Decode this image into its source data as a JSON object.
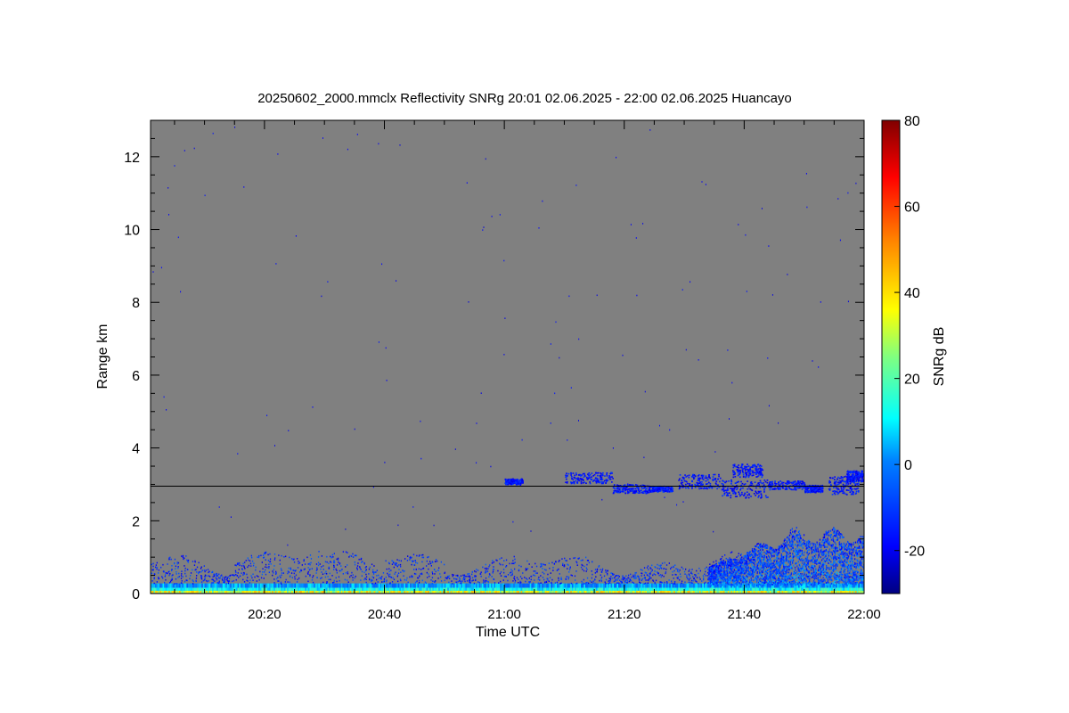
{
  "chart_data": {
    "type": "heatmap",
    "title": "20250602_2000.mmclx Reflectivity SNRg   20:01 02.06.2025 - 22:00 02.06.2025 Huancayo",
    "xlabel": "Time UTC",
    "ylabel": "Range km",
    "x_range_min": [
      1,
      120
    ],
    "x_tick_labels": [
      "20:20",
      "20:40",
      "21:00",
      "21:20",
      "21:40",
      "22:00"
    ],
    "x_tick_values_min": [
      20,
      40,
      60,
      80,
      100,
      120
    ],
    "ylim": [
      0,
      13
    ],
    "y_tick_labels": [
      "0",
      "2",
      "4",
      "6",
      "8",
      "10",
      "12"
    ],
    "y_tick_values": [
      0,
      2,
      4,
      6,
      8,
      10,
      12
    ],
    "reference_line_km": 2.95,
    "background_color": "#808080",
    "colorbar": {
      "label": "SNRg dB",
      "range": [
        -30,
        80
      ],
      "tick_labels": [
        "-20",
        "0",
        "20",
        "40",
        "60",
        "80"
      ],
      "tick_values": [
        -20,
        0,
        20,
        40,
        60,
        80
      ],
      "colormap": [
        "#000080",
        "#0000ff",
        "#0080ff",
        "#00ffff",
        "#80ff80",
        "#ffff00",
        "#ff8000",
        "#ff0000",
        "#800000"
      ]
    },
    "features": [
      {
        "kind": "surface_layer",
        "x_min": [
          1,
          120
        ],
        "range_km": [
          0,
          0.3
        ],
        "snr_db": 15
      },
      {
        "kind": "boundary_layer_noise",
        "x_min": [
          1,
          120
        ],
        "range_km": [
          0.3,
          1.0
        ],
        "snr_db": -15
      },
      {
        "kind": "convective_plume",
        "x_min": [
          95,
          120
        ],
        "range_km": [
          0.2,
          1.7
        ],
        "snr_db": -5
      },
      {
        "kind": "cloud_layer",
        "x_min": [
          60,
          120
        ],
        "range_km": [
          2.6,
          3.6
        ],
        "snr_db": -15
      }
    ]
  }
}
